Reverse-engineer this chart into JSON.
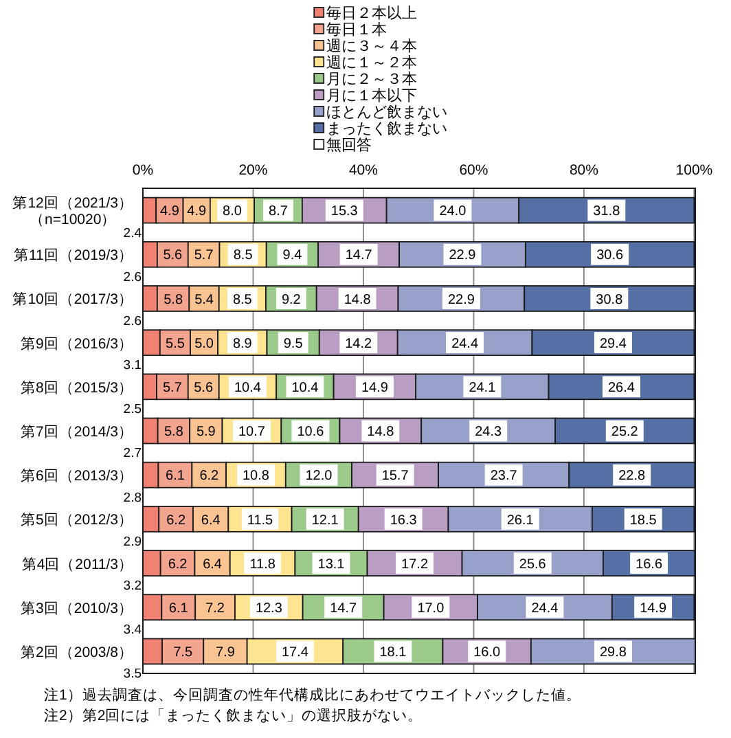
{
  "chart_data": {
    "type": "bar",
    "orientation": "horizontal",
    "stacked": true,
    "categories": [
      "第12回（2021/3）（n=10020）",
      "第11回（2019/3）",
      "第10回（2017/3）",
      "第9回（2016/3）",
      "第8回（2015/3）",
      "第7回（2014/3）",
      "第6回（2013/3）",
      "第5回（2012/3）",
      "第4回（2011/3）",
      "第3回（2010/3）",
      "第2回（2003/8）"
    ],
    "series": [
      {
        "name": "毎日２本以上",
        "color": "#ef8272",
        "values": [
          2.4,
          2.6,
          2.6,
          3.1,
          2.5,
          2.7,
          2.8,
          2.9,
          3.2,
          3.4,
          3.5
        ],
        "value_labels": [
          "2.4",
          "2.6",
          "2.6",
          "3.1",
          "2.5",
          "2.7",
          "2.8",
          "2.9",
          "3.2",
          "3.4",
          "3.5"
        ]
      },
      {
        "name": "毎日１本",
        "color": "#f2a48e",
        "values": [
          4.9,
          5.6,
          5.8,
          5.5,
          5.7,
          5.8,
          6.1,
          6.2,
          6.2,
          6.1,
          7.5
        ],
        "value_labels": [
          "4.9",
          "5.6",
          "5.8",
          "5.5",
          "5.7",
          "5.8",
          "6.1",
          "6.2",
          "6.2",
          "6.1",
          "7.5"
        ]
      },
      {
        "name": "週に３～４本",
        "color": "#f9c491",
        "values": [
          4.9,
          5.7,
          5.4,
          5.0,
          5.6,
          5.9,
          6.2,
          6.4,
          6.4,
          7.2,
          7.9
        ],
        "value_labels": [
          "4.9",
          "5.7",
          "5.4",
          "5.0",
          "5.6",
          "5.9",
          "6.2",
          "6.4",
          "6.4",
          "7.2",
          "7.9"
        ]
      },
      {
        "name": "週に１～２本",
        "color": "#fee391",
        "values": [
          8.0,
          8.5,
          8.5,
          8.9,
          10.4,
          10.7,
          10.8,
          11.5,
          11.8,
          12.3,
          17.4
        ],
        "value_labels": [
          "8.0",
          "8.5",
          "8.5",
          "8.9",
          "10.4",
          "10.7",
          "10.8",
          "11.5",
          "11.8",
          "12.3",
          "17.4"
        ]
      },
      {
        "name": "月に２～３本",
        "color": "#9cca8a",
        "values": [
          8.7,
          9.4,
          9.2,
          9.5,
          10.4,
          10.6,
          12.0,
          12.1,
          13.1,
          14.7,
          18.1
        ],
        "value_labels": [
          "8.7",
          "9.4",
          "9.2",
          "9.5",
          "10.4",
          "10.6",
          "12.0",
          "12.1",
          "13.1",
          "14.7",
          "18.1"
        ]
      },
      {
        "name": "月に１本以下",
        "color": "#ba9dc2",
        "values": [
          15.3,
          14.7,
          14.8,
          14.2,
          14.9,
          14.8,
          15.7,
          16.3,
          17.2,
          17.0,
          16.0
        ],
        "value_labels": [
          "15.3",
          "14.7",
          "14.8",
          "14.2",
          "14.9",
          "14.8",
          "15.7",
          "16.3",
          "17.2",
          "17.0",
          "16.0"
        ]
      },
      {
        "name": "ほとんど飲まない",
        "color": "#97a1c9",
        "values": [
          24.0,
          22.9,
          22.9,
          24.4,
          24.1,
          24.3,
          23.7,
          26.1,
          25.6,
          24.4,
          29.8
        ],
        "value_labels": [
          "24.0",
          "22.9",
          "22.9",
          "24.4",
          "24.1",
          "24.3",
          "23.7",
          "26.1",
          "25.6",
          "24.4",
          "29.8"
        ]
      },
      {
        "name": "まったく飲まない",
        "color": "#5670a6",
        "values": [
          31.8,
          30.6,
          30.8,
          29.4,
          26.4,
          25.2,
          22.8,
          18.5,
          16.6,
          14.9,
          null
        ],
        "value_labels": [
          "31.8",
          "30.6",
          "30.8",
          "29.4",
          "26.4",
          "25.2",
          "22.8",
          "18.5",
          "16.6",
          "14.9",
          null
        ]
      },
      {
        "name": "無回答",
        "color": "#ffffff",
        "values": [
          null,
          null,
          null,
          null,
          null,
          null,
          null,
          null,
          null,
          null,
          null
        ]
      }
    ],
    "xlim": [
      0,
      100.2
    ],
    "xticks": [
      {
        "value": 0,
        "label": "0%"
      },
      {
        "value": 20,
        "label": "20%"
      },
      {
        "value": 40,
        "label": "40%"
      },
      {
        "value": 60,
        "label": "60%"
      },
      {
        "value": 80,
        "label": "80%"
      },
      {
        "value": 100,
        "label": "100%"
      }
    ],
    "grid": "x",
    "legend": "top",
    "annotations": [
      "注1）過去調査は、今回調査の性年代構成比にあわせてウエイトバックした値。",
      "注2）第2回には「まったく飲まない」の選択肢がない。"
    ]
  }
}
